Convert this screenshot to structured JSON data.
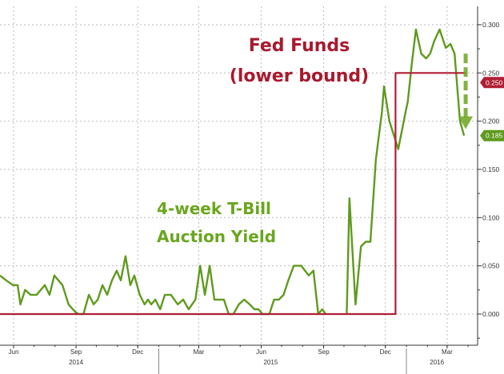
{
  "chart_data": {
    "type": "line",
    "title": "",
    "xlabel": "",
    "ylabel": "",
    "y_axis_side": "right",
    "ylim": [
      -0.03,
      0.32
    ],
    "yticks": [
      "0.300",
      "0.250",
      "0.200",
      "0.150",
      "0.100",
      "0.050",
      "0.000"
    ],
    "ytick_values": [
      0.3,
      0.25,
      0.2,
      0.15,
      0.1,
      0.05,
      0.0
    ],
    "xlim": [
      "2014-05-12",
      "2016-04-05"
    ],
    "xticks": [
      {
        "date": "2014-06-01",
        "label": "Jun"
      },
      {
        "date": "2014-09-01",
        "label": "Sep"
      },
      {
        "date": "2014-12-01",
        "label": "Dec"
      },
      {
        "date": "2015-03-01",
        "label": "Mar"
      },
      {
        "date": "2015-06-01",
        "label": "Jun"
      },
      {
        "date": "2015-09-01",
        "label": "Sep"
      },
      {
        "date": "2015-12-01",
        "label": "Dec"
      },
      {
        "date": "2016-03-01",
        "label": "Mar"
      }
    ],
    "year_labels": [
      {
        "date": "2014-09-01",
        "label": "2014"
      },
      {
        "date": "2015-06-15",
        "label": "2015"
      },
      {
        "date": "2016-02-15",
        "label": "2016"
      }
    ],
    "year_separators": [
      "2015-01-01",
      "2016-01-01"
    ],
    "grid": true,
    "colors": {
      "tbill": "#5f9a1e",
      "fedfunds": "#b01f36",
      "tbill_label": "#6aa61f",
      "fedfunds_label": "#a8192e"
    },
    "annotations": {
      "fedfunds_line1": "Fed Funds",
      "fedfunds_line2": "(lower bound)",
      "tbill_line1": "4-week T-Bill",
      "tbill_line2": "Auction Yield"
    },
    "last_value_badges": {
      "fedfunds": "0.250",
      "tbill": "0.185"
    },
    "series": [
      {
        "id": "tbill",
        "points": [
          [
            "2014-05-12",
            0.04
          ],
          [
            "2014-05-21",
            0.035
          ],
          [
            "2014-05-31",
            0.03
          ],
          [
            "2014-06-07",
            0.03
          ],
          [
            "2014-06-11",
            0.01
          ],
          [
            "2014-06-18",
            0.025
          ],
          [
            "2014-06-26",
            0.02
          ],
          [
            "2014-07-05",
            0.02
          ],
          [
            "2014-07-17",
            0.03
          ],
          [
            "2014-07-24",
            0.02
          ],
          [
            "2014-07-31",
            0.04
          ],
          [
            "2014-08-12",
            0.03
          ],
          [
            "2014-08-21",
            0.01
          ],
          [
            "2014-08-31",
            0.002
          ],
          [
            "2014-09-05",
            0.0
          ],
          [
            "2014-09-12",
            0.0
          ],
          [
            "2014-09-20",
            0.02
          ],
          [
            "2014-09-27",
            0.01
          ],
          [
            "2014-10-03",
            0.015
          ],
          [
            "2014-10-10",
            0.03
          ],
          [
            "2014-10-17",
            0.02
          ],
          [
            "2014-10-24",
            0.035
          ],
          [
            "2014-10-31",
            0.045
          ],
          [
            "2014-11-06",
            0.035
          ],
          [
            "2014-11-13",
            0.06
          ],
          [
            "2014-11-20",
            0.03
          ],
          [
            "2014-11-26",
            0.04
          ],
          [
            "2014-12-04",
            0.02
          ],
          [
            "2014-12-11",
            0.01
          ],
          [
            "2014-12-16",
            0.015
          ],
          [
            "2014-12-21",
            0.01
          ],
          [
            "2014-12-27",
            0.015
          ],
          [
            "2015-01-03",
            0.005
          ],
          [
            "2015-01-10",
            0.02
          ],
          [
            "2015-01-19",
            0.02
          ],
          [
            "2015-01-29",
            0.01
          ],
          [
            "2015-02-06",
            0.015
          ],
          [
            "2015-02-14",
            0.005
          ],
          [
            "2015-02-24",
            0.015
          ],
          [
            "2015-03-03",
            0.05
          ],
          [
            "2015-03-10",
            0.02
          ],
          [
            "2015-03-17",
            0.05
          ],
          [
            "2015-03-24",
            0.015
          ],
          [
            "2015-04-07",
            0.015
          ],
          [
            "2015-04-14",
            0.0
          ],
          [
            "2015-04-21",
            0.0
          ],
          [
            "2015-04-29",
            0.01
          ],
          [
            "2015-05-07",
            0.015
          ],
          [
            "2015-05-15",
            0.01
          ],
          [
            "2015-05-22",
            0.005
          ],
          [
            "2015-05-28",
            0.005
          ],
          [
            "2015-06-03",
            0.0
          ],
          [
            "2015-06-13",
            0.0
          ],
          [
            "2015-06-20",
            0.015
          ],
          [
            "2015-06-27",
            0.015
          ],
          [
            "2015-07-04",
            0.02
          ],
          [
            "2015-07-11",
            0.035
          ],
          [
            "2015-07-19",
            0.05
          ],
          [
            "2015-07-30",
            0.05
          ],
          [
            "2015-08-10",
            0.04
          ],
          [
            "2015-08-17",
            0.045
          ],
          [
            "2015-08-24",
            0.0
          ],
          [
            "2015-08-30",
            0.005
          ],
          [
            "2015-09-04",
            0.0
          ],
          null,
          [
            "2015-10-05",
            0.0
          ],
          [
            "2015-10-09",
            0.12
          ],
          [
            "2015-10-18",
            0.01
          ],
          [
            "2015-10-26",
            0.07
          ],
          [
            "2015-11-02",
            0.075
          ],
          [
            "2015-11-09",
            0.075
          ],
          [
            "2015-11-17",
            0.16
          ],
          [
            "2015-11-26",
            0.21
          ],
          [
            "2015-11-29",
            0.236
          ],
          [
            "2015-12-07",
            0.2
          ],
          [
            "2015-12-20",
            0.171
          ],
          [
            "2015-12-31",
            0.21
          ],
          [
            "2016-01-03",
            0.22
          ],
          [
            "2016-01-09",
            0.26
          ],
          [
            "2016-01-15",
            0.295
          ],
          [
            "2016-01-23",
            0.27
          ],
          [
            "2016-01-30",
            0.265
          ],
          [
            "2016-02-05",
            0.27
          ],
          [
            "2016-02-11",
            0.283
          ],
          [
            "2016-02-19",
            0.295
          ],
          [
            "2016-02-28",
            0.276
          ],
          [
            "2016-03-06",
            0.28
          ],
          [
            "2016-03-12",
            0.27
          ],
          [
            "2016-03-20",
            0.2
          ],
          [
            "2016-03-26",
            0.185
          ]
        ]
      },
      {
        "id": "fedfunds",
        "points": [
          [
            "2014-05-12",
            0.0
          ],
          [
            "2015-12-16",
            0.0
          ],
          [
            "2015-12-16",
            0.25
          ],
          [
            "2016-03-28",
            0.25
          ]
        ]
      }
    ],
    "arrow": {
      "from": [
        "2016-03-26",
        0.27
      ],
      "to": [
        "2016-03-26",
        0.195
      ],
      "style": "dashed",
      "color": "#6aa61f"
    }
  }
}
